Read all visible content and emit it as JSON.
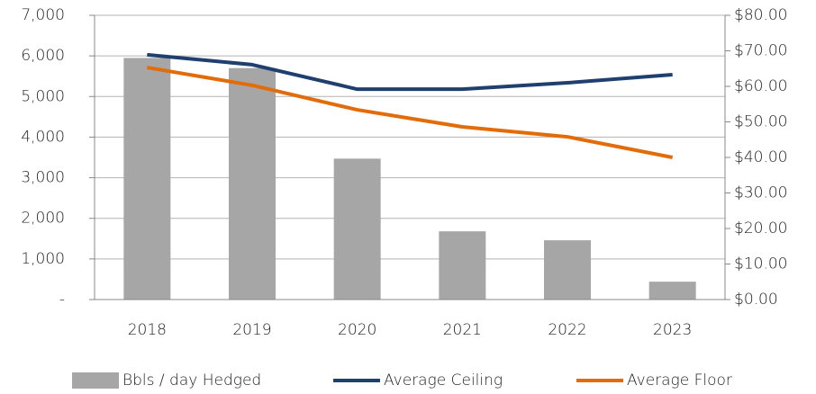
{
  "chart_data": {
    "type": "bar",
    "categories": [
      "2018",
      "2019",
      "2020",
      "2021",
      "2022",
      "2023"
    ],
    "series": [
      {
        "name": "Bbls / day Hedged",
        "type": "bar",
        "color": "#a6a6a6",
        "values": [
          5950,
          5700,
          3470,
          1680,
          1460,
          440
        ]
      },
      {
        "name": "Average Ceiling",
        "type": "line",
        "axis": "y2",
        "color": "#1f3f6e",
        "values": [
          68.9,
          66.1,
          59.2,
          59.2,
          61,
          63.3
        ]
      },
      {
        "name": "Average Floor",
        "type": "line",
        "axis": "y2",
        "color": "#e36c0a",
        "values": [
          65.3,
          60.3,
          53.4,
          48.6,
          45.8,
          40
        ]
      }
    ],
    "ylim": [
      0,
      7000
    ],
    "yticks": [
      {
        "value": 0,
        "label": "-"
      },
      {
        "value": 1000,
        "label": "1,000"
      },
      {
        "value": 2000,
        "label": "2,000"
      },
      {
        "value": 3000,
        "label": "3,000"
      },
      {
        "value": 4000,
        "label": "4,000"
      },
      {
        "value": 5000,
        "label": "5,000"
      },
      {
        "value": 6000,
        "label": "6,000"
      },
      {
        "value": 7000,
        "label": "7,000"
      }
    ],
    "y2lim": [
      0,
      80
    ],
    "y2ticks": [
      {
        "value": 0,
        "label": "$0.00"
      },
      {
        "value": 10,
        "label": "$10.00"
      },
      {
        "value": 20,
        "label": "$20.00"
      },
      {
        "value": 30,
        "label": "$30.00"
      },
      {
        "value": 40,
        "label": "$40.00"
      },
      {
        "value": 50,
        "label": "$50.00"
      },
      {
        "value": 60,
        "label": "$60.00"
      },
      {
        "value": 70,
        "label": "$70.00"
      },
      {
        "value": 80,
        "label": "$80.00"
      }
    ],
    "grid": true,
    "legend": "bottom"
  }
}
